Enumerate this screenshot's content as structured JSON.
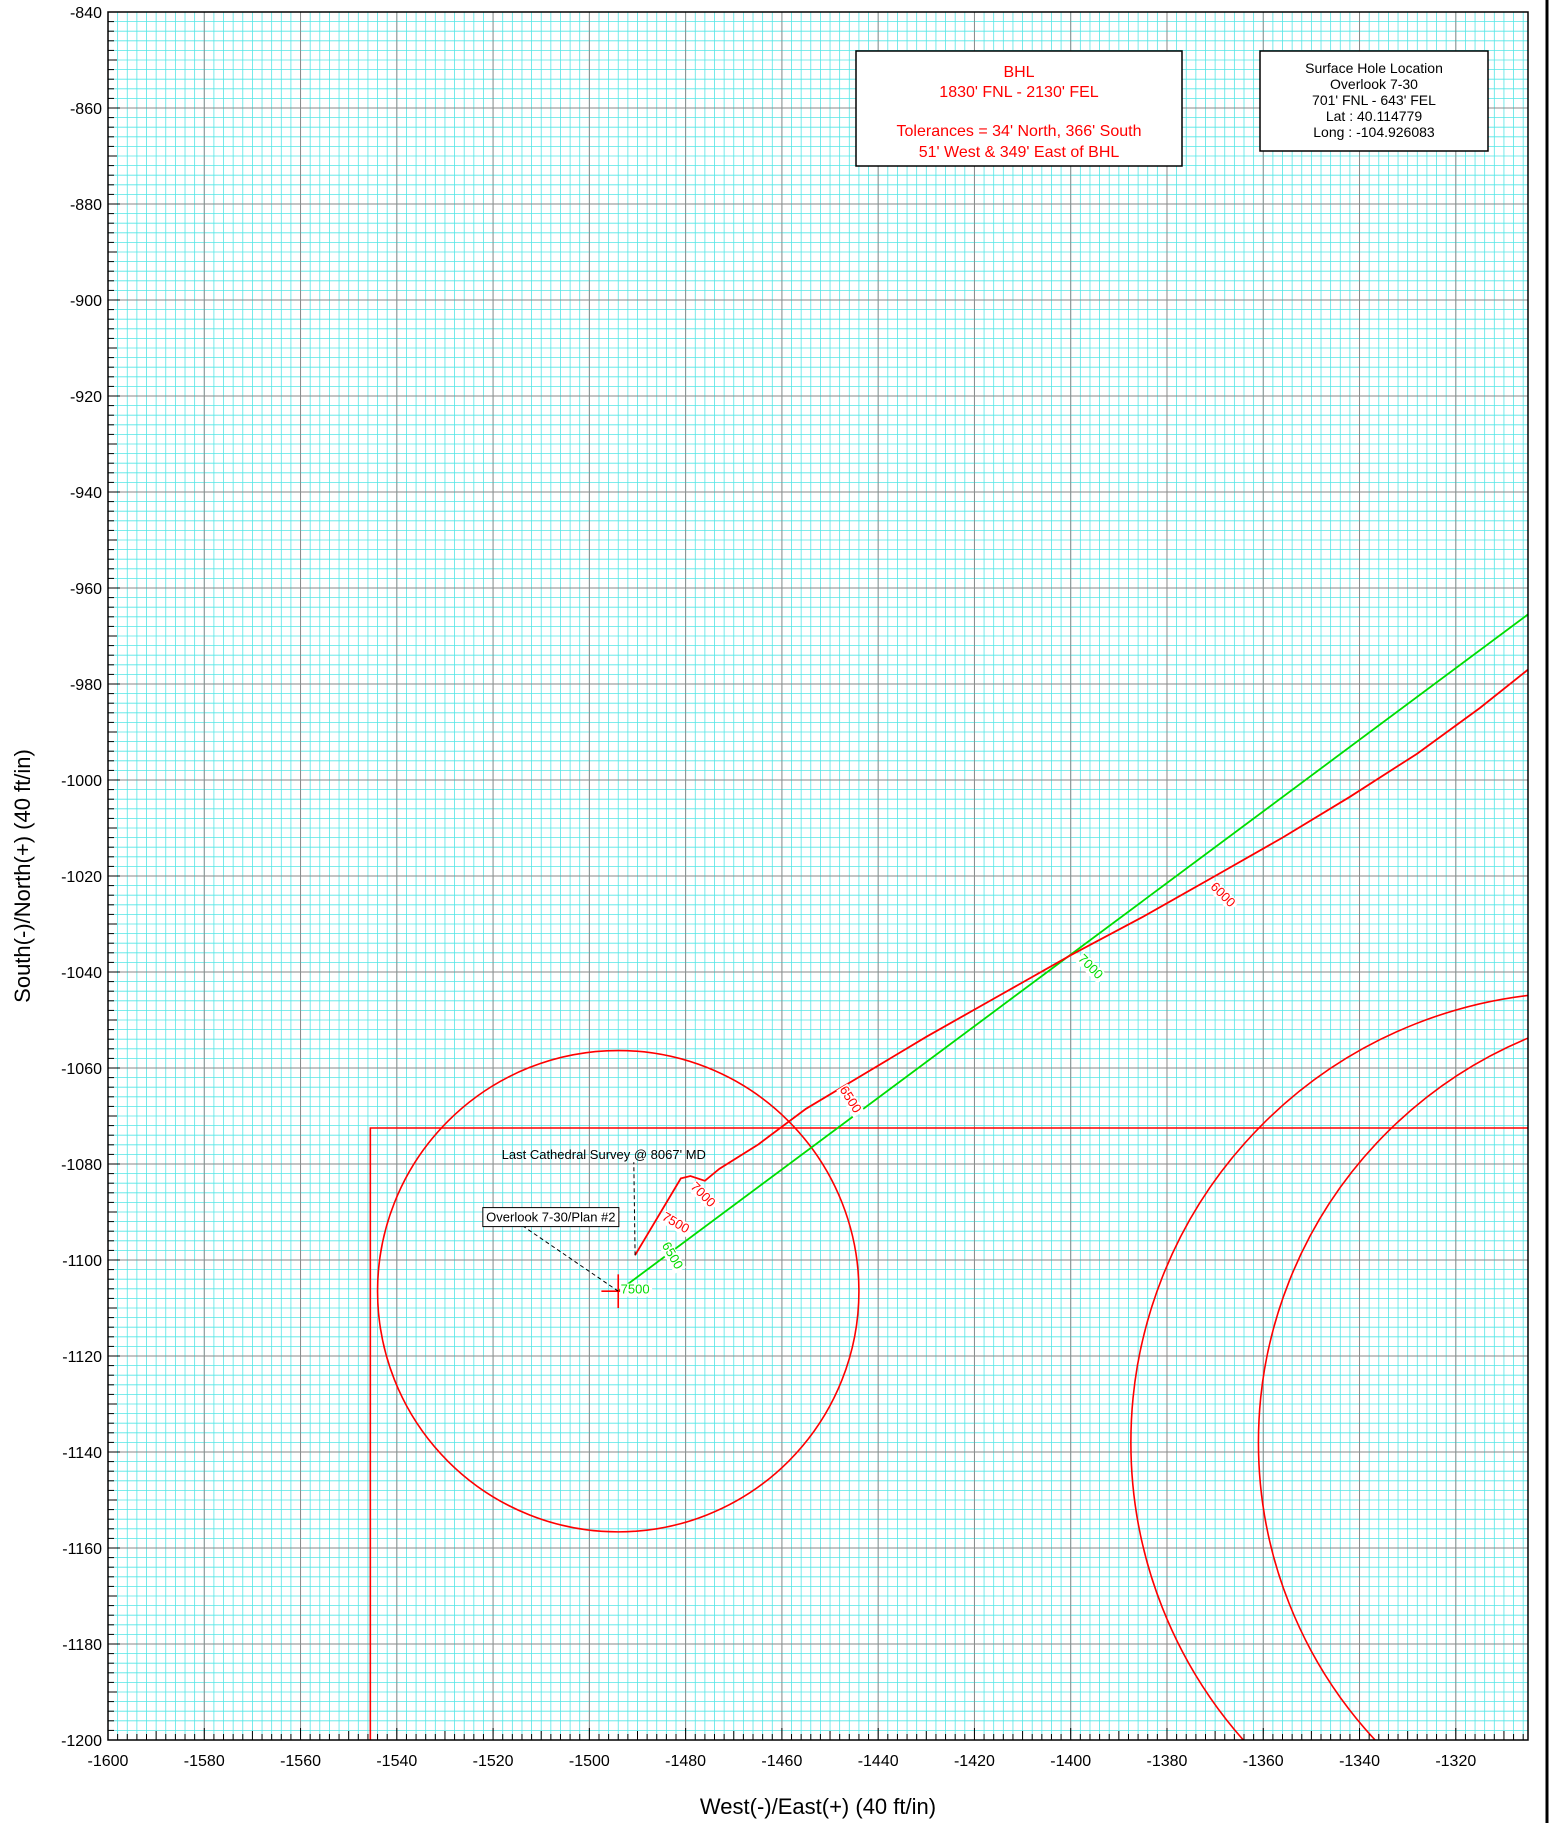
{
  "chart_data": {
    "type": "line",
    "xlabel": "West(-)/East(+) (40 ft/in)",
    "ylabel": "South(-)/North(+) (40 ft/in)",
    "xlim": [
      -1600,
      -1305
    ],
    "ylim": [
      -1200,
      -840
    ],
    "x_ticks": [
      "-1600",
      "-1580",
      "-1560",
      "-1540",
      "-1520",
      "-1500",
      "-1480",
      "-1460",
      "-1440",
      "-1420",
      "-1400",
      "-1380",
      "-1360",
      "-1340",
      "-1320"
    ],
    "y_ticks": [
      "-840",
      "-860",
      "-880",
      "-900",
      "-920",
      "-940",
      "-960",
      "-980",
      "-1000",
      "-1020",
      "-1040",
      "-1060",
      "-1080",
      "-1100",
      "-1120",
      "-1140",
      "-1160",
      "-1180",
      "-1200"
    ],
    "grid": "major and minor",
    "colors": {
      "grid_minor": "#55e6e6",
      "grid_major": "#8a8a8a",
      "survey": "#ff0000",
      "plan": "#00dd00",
      "frame": "#000000"
    },
    "series": [
      {
        "color": "#00dd00",
        "points": [
          [
            -1494,
            -1106.5
          ],
          [
            -1305,
            -965.5
          ]
        ]
      },
      {
        "color": "#ff0000",
        "points": [
          [
            -1490.5,
            -1099
          ],
          [
            -1481,
            -1083
          ],
          [
            -1479,
            -1082.5
          ],
          [
            -1476,
            -1083.5
          ],
          [
            -1473,
            -1081
          ],
          [
            -1465,
            -1076
          ],
          [
            -1455,
            -1068.5
          ],
          [
            -1445,
            -1062.5
          ],
          [
            -1430,
            -1053.5
          ],
          [
            -1415,
            -1045
          ],
          [
            -1400,
            -1036.5
          ],
          [
            -1385,
            -1028.5
          ],
          [
            -1370,
            -1020
          ],
          [
            -1356,
            -1012
          ],
          [
            -1342,
            -1003.5
          ],
          [
            -1328,
            -994.5
          ],
          [
            -1315,
            -985
          ],
          [
            -1305,
            -977
          ]
        ]
      }
    ],
    "md_labels": [
      {
        "text": "6000",
        "x": -1369,
        "y": -1024.5,
        "color": "#ff0000",
        "angle": 45
      },
      {
        "text": "6500",
        "x": -1446.5,
        "y": -1067,
        "color": "#ff0000",
        "angle": 58
      },
      {
        "text": "7000",
        "x": -1477,
        "y": -1087,
        "color": "#ff0000",
        "angle": 45
      },
      {
        "text": "7500",
        "x": -1482.5,
        "y": -1093,
        "color": "#ff0000",
        "angle": 30
      },
      {
        "text": "7000",
        "x": -1396.5,
        "y": -1039.5,
        "color": "#00dd00",
        "angle": 45
      },
      {
        "text": "6500",
        "x": -1483.5,
        "y": -1099.5,
        "color": "#00dd00",
        "angle": 60
      },
      {
        "text": "7500",
        "x": -1490.5,
        "y": -1107,
        "color": "#00dd00",
        "angle": 0
      }
    ],
    "target_circle": {
      "center": [
        -1494,
        -1106.5
      ],
      "radius": 50,
      "color": "#ff0000"
    },
    "target_crosshair": {
      "center": [
        -1494,
        -1106.5
      ],
      "half_size": 3.5
    },
    "tolerance_box": {
      "x_left": -1545.5,
      "y_top": -1072.5,
      "color": "#ff0000"
    },
    "arcs": [
      {
        "center": [
          -1294,
          -1138
        ],
        "radius": 93.5,
        "color": "#ff0000"
      },
      {
        "center": [
          -1270,
          -1138
        ],
        "radius": 91,
        "color": "#ff0000"
      }
    ]
  },
  "annotations": {
    "last_survey": {
      "text": "Last Cathedral Survey @ 8067' MD",
      "anchor": [
        -1490.5,
        -1099
      ],
      "label_at": [
        -1497,
        -1079
      ]
    },
    "plan": {
      "text": "Overlook 7-30/Plan #2",
      "anchor": [
        -1494,
        -1106.5
      ],
      "label_at": [
        -1508,
        -1092
      ]
    }
  },
  "bhl_box": {
    "title": "BHL",
    "line1": "1830' FNL - 2130' FEL",
    "line2": "Tolerances = 34' North, 366' South",
    "line3": "51' West & 349' East of BHL"
  },
  "shl_box": {
    "title": "Surface Hole Location",
    "line1": "Overlook 7-30",
    "line2": "701' FNL - 643' FEL",
    "line3": "Lat :  40.114779",
    "line4": "Long :  -104.926083"
  }
}
